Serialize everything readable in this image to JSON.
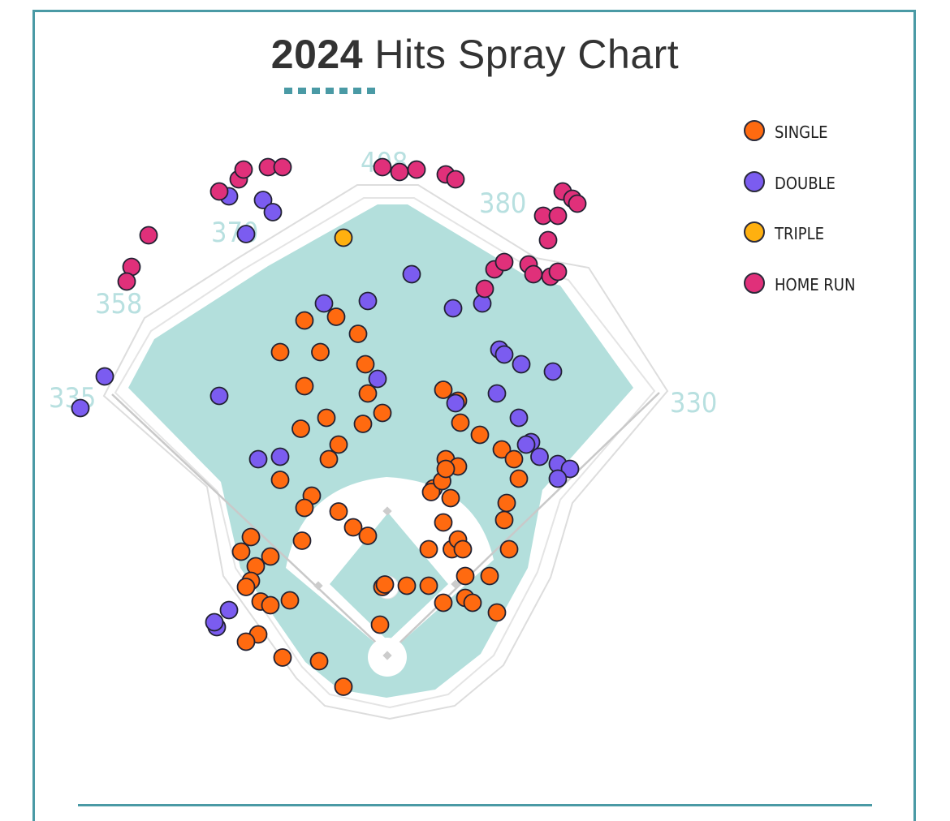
{
  "title": {
    "year": "2024",
    "rest": "Hits Spray Chart"
  },
  "colors": {
    "frame": "#4a9aa5",
    "grass": "#b3dfdc",
    "dirt": "#ffffff",
    "single": "#ff6a10",
    "double": "#7b5cf0",
    "triple": "#ffb00f",
    "home_run": "#e0307a"
  },
  "legend": [
    {
      "key": "single",
      "label": "SINGLE"
    },
    {
      "key": "double",
      "label": "DOUBLE"
    },
    {
      "key": "triple",
      "label": "TRIPLE"
    },
    {
      "key": "home_run",
      "label": "HOME RUN"
    }
  ],
  "distances": [
    "335",
    "358",
    "370",
    "408",
    "380",
    "330"
  ],
  "chart_data": {
    "type": "scatter",
    "title": "2024 Hits Spray Chart",
    "xlabel": "",
    "ylabel": "",
    "legend_position": "right",
    "grid": false,
    "wall_distances": [
      "335",
      "358",
      "370",
      "408",
      "380",
      "330"
    ],
    "series": [
      {
        "name": "SINGLE",
        "points": [
          [
            -55,
            248
          ],
          [
            -68,
            220
          ],
          [
            -18,
            238
          ],
          [
            -24,
            263
          ],
          [
            -42,
            277
          ],
          [
            -68,
            274
          ],
          [
            -88,
            248
          ],
          [
            -16,
            214
          ],
          [
            -4,
            198
          ],
          [
            -20,
            189
          ],
          [
            -50,
            194
          ],
          [
            -71,
            185
          ],
          [
            -40,
            172
          ],
          [
            -48,
            160
          ],
          [
            -62,
            130
          ],
          [
            -68,
            120
          ],
          [
            -88,
            143
          ],
          [
            -40,
            117
          ],
          [
            -28,
            104
          ],
          [
            -16,
            97
          ],
          [
            -70,
            93
          ],
          [
            -96,
            80
          ],
          [
            -112,
            96
          ],
          [
            -120,
            84
          ],
          [
            -108,
            72
          ],
          [
            -112,
            60
          ],
          [
            -116,
            55
          ],
          [
            -104,
            43
          ],
          [
            -96,
            40
          ],
          [
            -80,
            44
          ],
          [
            -106,
            16
          ],
          [
            -116,
            10
          ],
          [
            -86,
            -3
          ],
          [
            -56,
            -6
          ],
          [
            -36,
            -27
          ],
          [
            -6,
            24
          ],
          [
            -4,
            55
          ],
          [
            -2,
            57
          ],
          [
            16,
            56
          ],
          [
            34,
            56
          ],
          [
            34,
            86
          ],
          [
            46,
            108
          ],
          [
            53,
            86
          ],
          [
            58,
            94
          ],
          [
            38,
            136
          ],
          [
            52,
            128
          ],
          [
            36,
            133
          ],
          [
            45,
            142
          ],
          [
            48,
            160
          ],
          [
            60,
            190
          ],
          [
            58,
            208
          ],
          [
            46,
            217
          ],
          [
            58,
            154
          ],
          [
            48,
            152
          ],
          [
            76,
            180
          ],
          [
            94,
            168
          ],
          [
            104,
            160
          ],
          [
            108,
            144
          ],
          [
            98,
            124
          ],
          [
            96,
            110
          ],
          [
            100,
            86
          ],
          [
            84,
            64
          ],
          [
            62,
            86
          ],
          [
            64,
            64
          ],
          [
            46,
            42
          ],
          [
            64,
            46
          ],
          [
            70,
            42
          ],
          [
            90,
            34
          ]
        ]
      },
      {
        "name": "DOUBLE",
        "points": [
          [
            -130,
            376
          ],
          [
            -116,
            345
          ],
          [
            -102,
            373
          ],
          [
            -94,
            363
          ],
          [
            -138,
            212
          ],
          [
            -232,
            228
          ],
          [
            -252,
            202
          ],
          [
            -130,
            36
          ],
          [
            -140,
            22
          ],
          [
            -142,
            26
          ],
          [
            -106,
            160
          ],
          [
            -88,
            162
          ],
          [
            -52,
            288
          ],
          [
            -16,
            290
          ],
          [
            -8,
            226
          ],
          [
            20,
            312
          ],
          [
            54,
            284
          ],
          [
            78,
            288
          ],
          [
            92,
            250
          ],
          [
            96,
            246
          ],
          [
            56,
            206
          ],
          [
            110,
            238
          ],
          [
            136,
            232
          ],
          [
            90,
            214
          ],
          [
            108,
            194
          ],
          [
            118,
            174
          ],
          [
            140,
            156
          ],
          [
            150,
            152
          ],
          [
            140,
            144
          ],
          [
            114,
            172
          ],
          [
            125,
            162
          ]
        ]
      },
      {
        "name": "TRIPLE",
        "points": [
          [
            -36,
            342
          ]
        ]
      },
      {
        "name": "HOME RUN",
        "points": [
          [
            -138,
            380
          ],
          [
            -122,
            390
          ],
          [
            -118,
            398
          ],
          [
            -98,
            400
          ],
          [
            -86,
            400
          ],
          [
            -4,
            400
          ],
          [
            10,
            396
          ],
          [
            24,
            398
          ],
          [
            48,
            394
          ],
          [
            56,
            390
          ],
          [
            80,
            300
          ],
          [
            88,
            316
          ],
          [
            96,
            322
          ],
          [
            116,
            320
          ],
          [
            120,
            312
          ],
          [
            134,
            310
          ],
          [
            140,
            314
          ],
          [
            132,
            340
          ],
          [
            128,
            360
          ],
          [
            140,
            360
          ],
          [
            144,
            380
          ],
          [
            152,
            374
          ],
          [
            156,
            370
          ],
          [
            -210,
            318
          ],
          [
            -214,
            306
          ],
          [
            -196,
            344
          ]
        ]
      }
    ]
  }
}
